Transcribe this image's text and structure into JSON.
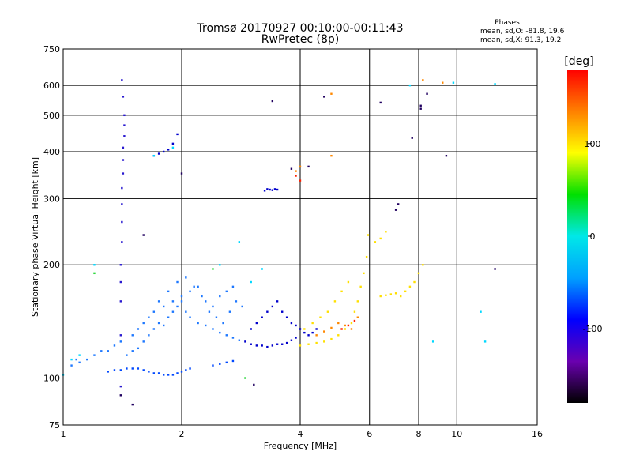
{
  "chart_data": {
    "type": "scatter",
    "title": "Tromsø 20170927 00:10:00-00:11:43",
    "subtitle": "RwPretec (8p)",
    "xlabel": "Frequency [MHz]",
    "ylabel": "Stationary phase Virtual Height [km]",
    "xscale": "log",
    "yscale": "log",
    "xlim": [
      1,
      16
    ],
    "ylim": [
      75,
      750
    ],
    "xticks": [
      1,
      2,
      4,
      6,
      8,
      10,
      16
    ],
    "yticks": [
      75,
      100,
      200,
      300,
      400,
      500,
      600,
      750
    ],
    "grid": true,
    "phases_box": {
      "heading": "Phases",
      "line1": "mean, sd,O: -81.8, 19.6",
      "line2": "mean, sd,X:  91.3, 19.2"
    },
    "colorbar": {
      "label": "[deg]",
      "range": [
        -180,
        180
      ],
      "ticks": [
        100,
        0,
        -100
      ],
      "stops": [
        "#000000",
        "#6a00b0",
        "#0000ff",
        "#00a0ff",
        "#00e8e8",
        "#00e000",
        "#ffff00",
        "#ff8000",
        "#ff0000"
      ]
    },
    "series": [
      {
        "role": "dense-o-low-band",
        "color": "#1e78ff",
        "points": [
          [
            1.45,
            115
          ],
          [
            1.5,
            118
          ],
          [
            1.55,
            120
          ],
          [
            1.6,
            125
          ],
          [
            1.65,
            130
          ],
          [
            1.7,
            135
          ],
          [
            1.75,
            140
          ],
          [
            1.8,
            138
          ],
          [
            1.85,
            145
          ],
          [
            1.9,
            150
          ],
          [
            1.95,
            155
          ],
          [
            2.0,
            160
          ],
          [
            2.05,
            150
          ],
          [
            2.1,
            145
          ],
          [
            2.2,
            140
          ],
          [
            2.3,
            138
          ],
          [
            2.4,
            135
          ],
          [
            2.5,
            132
          ],
          [
            2.6,
            130
          ],
          [
            2.7,
            128
          ],
          [
            2.8,
            126
          ],
          [
            1.6,
            140
          ],
          [
            1.7,
            150
          ],
          [
            1.8,
            155
          ],
          [
            1.9,
            160
          ],
          [
            2.0,
            165
          ],
          [
            2.1,
            170
          ],
          [
            2.2,
            175
          ],
          [
            2.3,
            160
          ],
          [
            2.4,
            155
          ],
          [
            2.5,
            165
          ],
          [
            2.6,
            170
          ],
          [
            2.7,
            175
          ],
          [
            1.5,
            130
          ],
          [
            1.55,
            135
          ],
          [
            1.65,
            145
          ],
          [
            1.75,
            160
          ],
          [
            1.85,
            170
          ],
          [
            1.95,
            180
          ],
          [
            2.05,
            185
          ],
          [
            2.15,
            175
          ],
          [
            2.25,
            165
          ],
          [
            2.35,
            150
          ],
          [
            2.45,
            145
          ],
          [
            2.55,
            140
          ],
          [
            2.65,
            150
          ],
          [
            2.75,
            160
          ],
          [
            2.85,
            155
          ],
          [
            1.3,
            118
          ],
          [
            1.35,
            122
          ],
          [
            1.4,
            125
          ],
          [
            1.2,
            115
          ],
          [
            1.25,
            118
          ],
          [
            1.15,
            112
          ],
          [
            1.1,
            110
          ],
          [
            1.05,
            108
          ],
          [
            1.08,
            112
          ]
        ]
      },
      {
        "role": "o-lower-trace",
        "color": "#0048ff",
        "points": [
          [
            1.3,
            104
          ],
          [
            1.35,
            105
          ],
          [
            1.4,
            105
          ],
          [
            1.45,
            106
          ],
          [
            1.5,
            106
          ],
          [
            1.55,
            106
          ],
          [
            1.6,
            105
          ],
          [
            1.65,
            104
          ],
          [
            1.7,
            103
          ],
          [
            1.75,
            103
          ],
          [
            1.8,
            102
          ],
          [
            1.85,
            102
          ],
          [
            1.9,
            102
          ],
          [
            1.95,
            103
          ],
          [
            2.0,
            104
          ],
          [
            2.05,
            105
          ],
          [
            2.1,
            106
          ],
          [
            2.4,
            108
          ],
          [
            2.5,
            109
          ],
          [
            2.6,
            110
          ],
          [
            2.7,
            111
          ]
        ]
      },
      {
        "role": "o-mid-band",
        "color": "#0000cc",
        "points": [
          [
            2.9,
            125
          ],
          [
            3.0,
            123
          ],
          [
            3.1,
            122
          ],
          [
            3.2,
            122
          ],
          [
            3.3,
            121
          ],
          [
            3.4,
            122
          ],
          [
            3.5,
            123
          ],
          [
            3.6,
            123
          ],
          [
            3.7,
            124
          ],
          [
            3.8,
            126
          ],
          [
            3.9,
            128
          ],
          [
            3.0,
            135
          ],
          [
            3.1,
            140
          ],
          [
            3.2,
            145
          ],
          [
            3.3,
            150
          ],
          [
            3.4,
            155
          ],
          [
            3.5,
            160
          ],
          [
            3.6,
            150
          ],
          [
            3.7,
            145
          ],
          [
            3.8,
            140
          ],
          [
            3.9,
            138
          ],
          [
            4.0,
            135
          ],
          [
            4.1,
            132
          ],
          [
            4.2,
            130
          ],
          [
            4.3,
            132
          ],
          [
            4.4,
            135
          ],
          [
            3.25,
            315
          ],
          [
            3.3,
            318
          ],
          [
            3.35,
            317
          ],
          [
            3.4,
            316
          ],
          [
            3.45,
            318
          ],
          [
            3.5,
            317
          ],
          [
            1.75,
            395
          ],
          [
            1.8,
            400
          ],
          [
            1.85,
            405
          ],
          [
            1.9,
            420
          ],
          [
            1.95,
            445
          ],
          [
            1.7,
            390
          ]
        ]
      },
      {
        "role": "o-vertical-spur",
        "color": "#2a1ad0",
        "points": [
          [
            1.4,
            130
          ],
          [
            1.4,
            160
          ],
          [
            1.4,
            180
          ],
          [
            1.4,
            200
          ],
          [
            1.41,
            230
          ],
          [
            1.41,
            260
          ],
          [
            1.41,
            290
          ],
          [
            1.41,
            320
          ],
          [
            1.42,
            350
          ],
          [
            1.42,
            380
          ],
          [
            1.42,
            410
          ],
          [
            1.43,
            440
          ],
          [
            1.43,
            470
          ],
          [
            1.43,
            500
          ],
          [
            1.42,
            560
          ],
          [
            1.41,
            620
          ],
          [
            1.4,
            95
          ]
        ]
      },
      {
        "role": "x-mode-yellow",
        "color": "#ffe000",
        "points": [
          [
            4.0,
            122
          ],
          [
            4.2,
            123
          ],
          [
            4.4,
            124
          ],
          [
            4.6,
            125
          ],
          [
            4.8,
            127
          ],
          [
            5.0,
            130
          ],
          [
            5.2,
            135
          ],
          [
            5.4,
            140
          ],
          [
            5.5,
            150
          ],
          [
            5.6,
            160
          ],
          [
            5.7,
            175
          ],
          [
            5.8,
            190
          ],
          [
            5.9,
            210
          ],
          [
            5.95,
            240
          ],
          [
            4.1,
            135
          ],
          [
            4.3,
            140
          ],
          [
            4.5,
            145
          ],
          [
            4.7,
            150
          ],
          [
            4.9,
            160
          ],
          [
            5.1,
            170
          ],
          [
            5.3,
            180
          ],
          [
            6.4,
            165
          ],
          [
            6.6,
            166
          ],
          [
            6.8,
            167
          ],
          [
            7.0,
            168
          ],
          [
            7.2,
            165
          ],
          [
            7.4,
            170
          ],
          [
            7.6,
            175
          ],
          [
            7.8,
            180
          ],
          [
            8.0,
            190
          ],
          [
            8.2,
            200
          ],
          [
            6.2,
            230
          ],
          [
            6.4,
            235
          ],
          [
            6.6,
            245
          ]
        ]
      },
      {
        "role": "x-mode-orange",
        "color": "#ff8800",
        "points": [
          [
            4.4,
            130
          ],
          [
            4.6,
            133
          ],
          [
            4.8,
            136
          ],
          [
            5.0,
            140
          ],
          [
            5.2,
            138
          ],
          [
            5.4,
            135
          ],
          [
            5.6,
            145
          ],
          [
            3.9,
            355
          ],
          [
            4.0,
            365
          ],
          [
            4.8,
            390
          ],
          [
            8.2,
            620
          ],
          [
            9.2,
            610
          ],
          [
            4.8,
            570
          ]
        ]
      },
      {
        "role": "x-mode-red",
        "color": "#ff2000",
        "points": [
          [
            5.1,
            135
          ],
          [
            5.3,
            138
          ],
          [
            5.5,
            142
          ],
          [
            3.9,
            345
          ],
          [
            4.0,
            335
          ]
        ]
      },
      {
        "role": "scatter-cyan",
        "color": "#00d8ff",
        "points": [
          [
            1.05,
            112
          ],
          [
            1.1,
            115
          ],
          [
            1.0,
            102
          ],
          [
            1.2,
            200
          ],
          [
            1.7,
            390
          ],
          [
            2.8,
            230
          ],
          [
            2.5,
            200
          ],
          [
            1.9,
            410
          ],
          [
            3.2,
            195
          ],
          [
            3.0,
            180
          ],
          [
            7.6,
            600
          ],
          [
            9.8,
            610
          ],
          [
            12.5,
            605
          ],
          [
            11.5,
            150
          ],
          [
            11.8,
            125
          ],
          [
            8.7,
            125
          ]
        ]
      },
      {
        "role": "scatter-green",
        "color": "#30d840",
        "points": [
          [
            1.2,
            190
          ],
          [
            2.4,
            195
          ],
          [
            2.9,
            100
          ]
        ]
      },
      {
        "role": "scatter-dark",
        "color": "#200060",
        "points": [
          [
            1.5,
            85
          ],
          [
            1.4,
            90
          ],
          [
            2.0,
            350
          ],
          [
            3.05,
            96
          ],
          [
            7.1,
            290
          ],
          [
            7.0,
            280
          ],
          [
            8.4,
            570
          ],
          [
            9.4,
            390
          ],
          [
            1.6,
            240
          ],
          [
            3.4,
            545
          ],
          [
            3.8,
            360
          ],
          [
            4.2,
            365
          ],
          [
            4.6,
            560
          ],
          [
            8.1,
            520
          ],
          [
            8.1,
            530
          ],
          [
            7.7,
            435
          ],
          [
            12.5,
            195
          ],
          [
            6.4,
            540
          ]
        ]
      }
    ]
  }
}
